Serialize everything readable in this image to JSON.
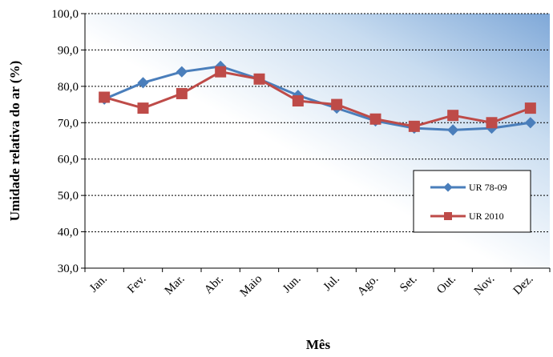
{
  "chart_data": {
    "type": "line",
    "xlabel": "Mês",
    "ylabel": "Umidade relativa do ar (%)",
    "ylim": [
      30,
      100
    ],
    "yticks": [
      "30,0",
      "40,0",
      "50,0",
      "60,0",
      "70,0",
      "80,0",
      "90,0",
      "100,0"
    ],
    "grid": true,
    "legend_position": "right",
    "categories": [
      "Jan.",
      "Fev.",
      "Mar.",
      "Abr.",
      "Maio",
      "Jun.",
      "Jul.",
      "Ago.",
      "Set.",
      "Out.",
      "Nov.",
      "Dez."
    ],
    "series": [
      {
        "name": "UR 78-09",
        "color": "#4a7ebb",
        "marker": "diamond",
        "values": [
          76.5,
          81.0,
          84.0,
          85.5,
          82.0,
          77.5,
          74.0,
          70.5,
          68.5,
          68.0,
          68.5,
          70.0
        ]
      },
      {
        "name": "UR 2010",
        "color": "#be4b48",
        "marker": "square",
        "values": [
          77.0,
          74.0,
          78.0,
          84.0,
          82.0,
          76.0,
          75.0,
          71.0,
          69.0,
          72.0,
          70.0,
          74.0
        ]
      }
    ]
  }
}
